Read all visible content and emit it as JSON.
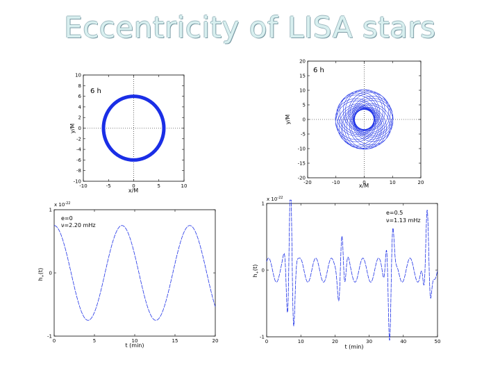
{
  "slide": {
    "title": "Eccentricity of LISA stars"
  },
  "chart_data": [
    {
      "type": "line",
      "panel": "orbit-circular",
      "annotation": "6 h",
      "xlabel": "x/M",
      "ylabel": "y/M",
      "xlim": [
        -10,
        10
      ],
      "ylim": [
        -10,
        10
      ],
      "x_ticks": [
        -10,
        -5,
        0,
        5,
        10
      ],
      "y_ticks": [
        10,
        8,
        6,
        4,
        2,
        0,
        -2,
        -4,
        -6,
        -8,
        -10
      ],
      "eccentricity": 0,
      "orbit_radius": 6,
      "grid": false,
      "color": "#1a2ee6"
    },
    {
      "type": "line",
      "panel": "orbit-eccentric",
      "annotation": "6 h",
      "xlabel": "x/M",
      "ylabel": "y/M",
      "xlim": [
        -20,
        20
      ],
      "ylim": [
        -20,
        20
      ],
      "x_ticks": [
        -20,
        -10,
        0,
        10,
        20
      ],
      "y_ticks": [
        20,
        15,
        10,
        5,
        0,
        -5,
        -10,
        -15,
        -20
      ],
      "eccentricity": 0.5,
      "grid": false,
      "color": "#1a2ee6"
    },
    {
      "type": "line",
      "panel": "waveform-circular",
      "exponent_label": "x 10",
      "exponent": "-22",
      "annotation_e": "e=0",
      "annotation_nu": "ν=2.20 mHz",
      "xlabel": "t (min)",
      "ylabel": "h",
      "ylabel_sub": "+",
      "ylabel_tail": "(t)",
      "xlim": [
        0,
        20
      ],
      "ylim": [
        -1,
        1
      ],
      "x_ticks": [
        0,
        5,
        10,
        15,
        20
      ],
      "y_ticks": [
        1,
        0,
        -1
      ],
      "frequency_mhz": 2.2,
      "amplitude": 0.75,
      "color": "#1a2ee6"
    },
    {
      "type": "line",
      "panel": "waveform-eccentric",
      "exponent_label": "x 10",
      "exponent": "-22",
      "annotation_e": "e=0.5",
      "annotation_nu": "ν=1.13 mHz",
      "xlabel": "t (min)",
      "ylabel": "h",
      "ylabel_sub": "+",
      "ylabel_tail": "(t)",
      "xlim": [
        0,
        50
      ],
      "ylim": [
        -1,
        1
      ],
      "x_ticks": [
        0,
        10,
        20,
        30,
        40,
        50
      ],
      "y_ticks": [
        1,
        0,
        -1
      ],
      "frequency_mhz": 1.13,
      "bursts_min": [
        7,
        22,
        36,
        47
      ],
      "color": "#1a2ee6"
    }
  ]
}
